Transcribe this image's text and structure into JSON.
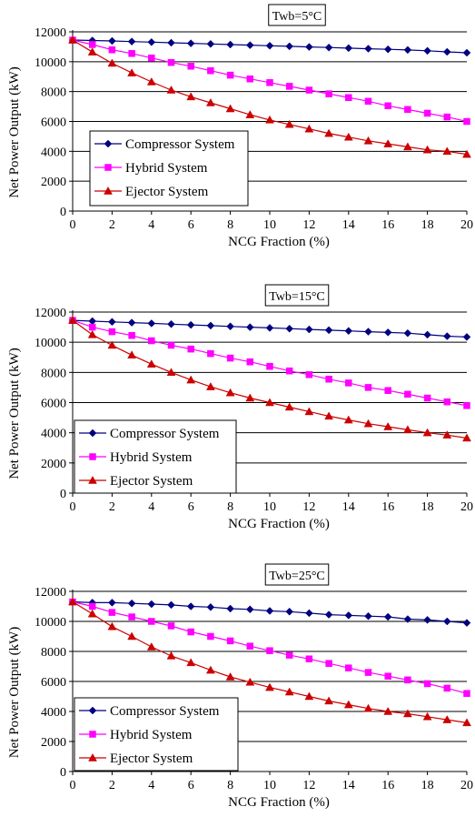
{
  "chart_data": [
    {
      "type": "line",
      "title": "Twb=5°C",
      "xlabel": "NCG Fraction (%)",
      "ylabel": "Net Power Output (kW)",
      "xlim": [
        0,
        20
      ],
      "ylim": [
        0,
        12000
      ],
      "xticks": [
        0,
        2,
        4,
        6,
        8,
        10,
        12,
        14,
        16,
        18,
        20
      ],
      "yticks": [
        0,
        2000,
        4000,
        6000,
        8000,
        10000,
        12000
      ],
      "grid": "horizontal",
      "legend": "lower-left",
      "x": [
        0,
        1,
        2,
        3,
        4,
        5,
        6,
        7,
        8,
        9,
        10,
        11,
        12,
        13,
        14,
        15,
        16,
        17,
        18,
        19,
        20
      ],
      "series": [
        {
          "name": "Compressor System",
          "color": "#000080",
          "marker": "diamond",
          "values": [
            11450,
            11420,
            11390,
            11350,
            11310,
            11270,
            11230,
            11190,
            11150,
            11110,
            11070,
            11030,
            10990,
            10950,
            10910,
            10870,
            10830,
            10790,
            10730,
            10660,
            10600
          ]
        },
        {
          "name": "Hybrid System",
          "color": "#ff00ff",
          "marker": "square",
          "values": [
            11450,
            11150,
            10800,
            10550,
            10250,
            9950,
            9700,
            9400,
            9100,
            8850,
            8600,
            8350,
            8100,
            7850,
            7600,
            7350,
            7050,
            6800,
            6550,
            6300,
            6000
          ]
        },
        {
          "name": "Ejector System",
          "color": "#cc0000",
          "marker": "triangle",
          "values": [
            11450,
            10650,
            9900,
            9250,
            8650,
            8100,
            7650,
            7250,
            6850,
            6450,
            6100,
            5800,
            5500,
            5200,
            4950,
            4700,
            4500,
            4300,
            4100,
            4000,
            3800
          ]
        }
      ]
    },
    {
      "type": "line",
      "title": "Twb=15°C",
      "xlabel": "NCG Fraction (%)",
      "ylabel": "Net Power Output (kW)",
      "xlim": [
        0,
        20
      ],
      "ylim": [
        0,
        12000
      ],
      "xticks": [
        0,
        2,
        4,
        6,
        8,
        10,
        12,
        14,
        16,
        18,
        20
      ],
      "yticks": [
        0,
        2000,
        4000,
        6000,
        8000,
        10000,
        12000
      ],
      "grid": "horizontal",
      "legend": "lower-left",
      "x": [
        0,
        1,
        2,
        3,
        4,
        5,
        6,
        7,
        8,
        9,
        10,
        11,
        12,
        13,
        14,
        15,
        16,
        17,
        18,
        19,
        20
      ],
      "series": [
        {
          "name": "Compressor System",
          "color": "#000080",
          "marker": "diamond",
          "values": [
            11450,
            11400,
            11350,
            11300,
            11250,
            11200,
            11150,
            11100,
            11050,
            11000,
            10950,
            10900,
            10850,
            10800,
            10750,
            10700,
            10650,
            10600,
            10500,
            10400,
            10350
          ]
        },
        {
          "name": "Hybrid System",
          "color": "#ff00ff",
          "marker": "square",
          "values": [
            11450,
            11000,
            10700,
            10450,
            10100,
            9800,
            9550,
            9250,
            8950,
            8700,
            8400,
            8100,
            7850,
            7550,
            7300,
            7000,
            6800,
            6550,
            6300,
            6050,
            5800
          ]
        },
        {
          "name": "Ejector System",
          "color": "#cc0000",
          "marker": "triangle",
          "values": [
            11450,
            10500,
            9800,
            9150,
            8550,
            8000,
            7500,
            7050,
            6650,
            6300,
            6000,
            5700,
            5400,
            5100,
            4850,
            4600,
            4400,
            4200,
            4000,
            3850,
            3650
          ]
        }
      ]
    },
    {
      "type": "line",
      "title": "Twb=25°C",
      "xlabel": "NCG Fraction (%)",
      "ylabel": "Net Power Output (kW)",
      "xlim": [
        0,
        20
      ],
      "ylim": [
        0,
        12000
      ],
      "xticks": [
        0,
        2,
        4,
        6,
        8,
        10,
        12,
        14,
        16,
        18,
        20
      ],
      "yticks": [
        0,
        2000,
        4000,
        6000,
        8000,
        10000,
        12000
      ],
      "grid": "horizontal",
      "legend": "lower-left",
      "x": [
        0,
        1,
        2,
        3,
        4,
        5,
        6,
        7,
        8,
        9,
        10,
        11,
        12,
        13,
        14,
        15,
        16,
        17,
        18,
        19,
        20
      ],
      "series": [
        {
          "name": "Compressor System",
          "color": "#000080",
          "marker": "diamond",
          "values": [
            11300,
            11250,
            11250,
            11200,
            11150,
            11100,
            11000,
            10950,
            10850,
            10800,
            10700,
            10650,
            10550,
            10450,
            10400,
            10350,
            10300,
            10150,
            10100,
            10000,
            9900
          ]
        },
        {
          "name": "Hybrid System",
          "color": "#ff00ff",
          "marker": "square",
          "values": [
            11300,
            11000,
            10600,
            10300,
            10000,
            9700,
            9300,
            9000,
            8700,
            8350,
            8050,
            7750,
            7500,
            7200,
            6900,
            6600,
            6350,
            6100,
            5850,
            5550,
            5200
          ]
        },
        {
          "name": "Ejector System",
          "color": "#cc0000",
          "marker": "triangle",
          "values": [
            11300,
            10500,
            9650,
            9000,
            8300,
            7700,
            7250,
            6750,
            6300,
            5950,
            5600,
            5300,
            5000,
            4700,
            4450,
            4200,
            4000,
            3850,
            3650,
            3450,
            3250
          ]
        }
      ]
    }
  ]
}
